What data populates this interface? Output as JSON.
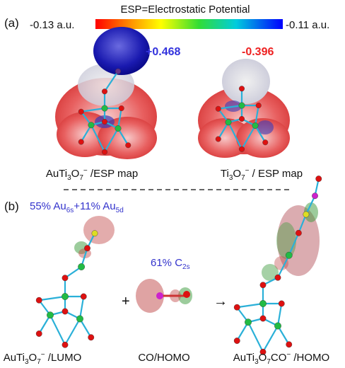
{
  "panel_a": {
    "label": "(a)",
    "colorbar": {
      "title": "ESP=Electrostatic Potential",
      "min_label": "-0.13 a.u.",
      "max_label": "-0.11 a.u."
    },
    "left": {
      "value": "+0.468",
      "caption": [
        "AuTi",
        "3",
        "O",
        "7",
        "−",
        " /ESP map"
      ]
    },
    "right": {
      "value": "-0.396",
      "caption": [
        "Ti",
        "3",
        "O",
        "7",
        "−",
        " / ESP map"
      ]
    }
  },
  "panel_b": {
    "label": "(b)",
    "lumo_note": [
      "55% Au",
      "6s",
      "+11% Au",
      "5d"
    ],
    "co_note": [
      "61% C",
      "2s"
    ],
    "plus": "+",
    "arrow": "→",
    "captions": [
      [
        "AuTi",
        "3",
        "O",
        "7",
        "−",
        " /LUMO"
      ],
      [
        "CO/HOMO"
      ],
      [
        "AuTi",
        "3",
        "O",
        "7",
        "CO",
        "−",
        " /HOMO"
      ]
    ]
  }
}
